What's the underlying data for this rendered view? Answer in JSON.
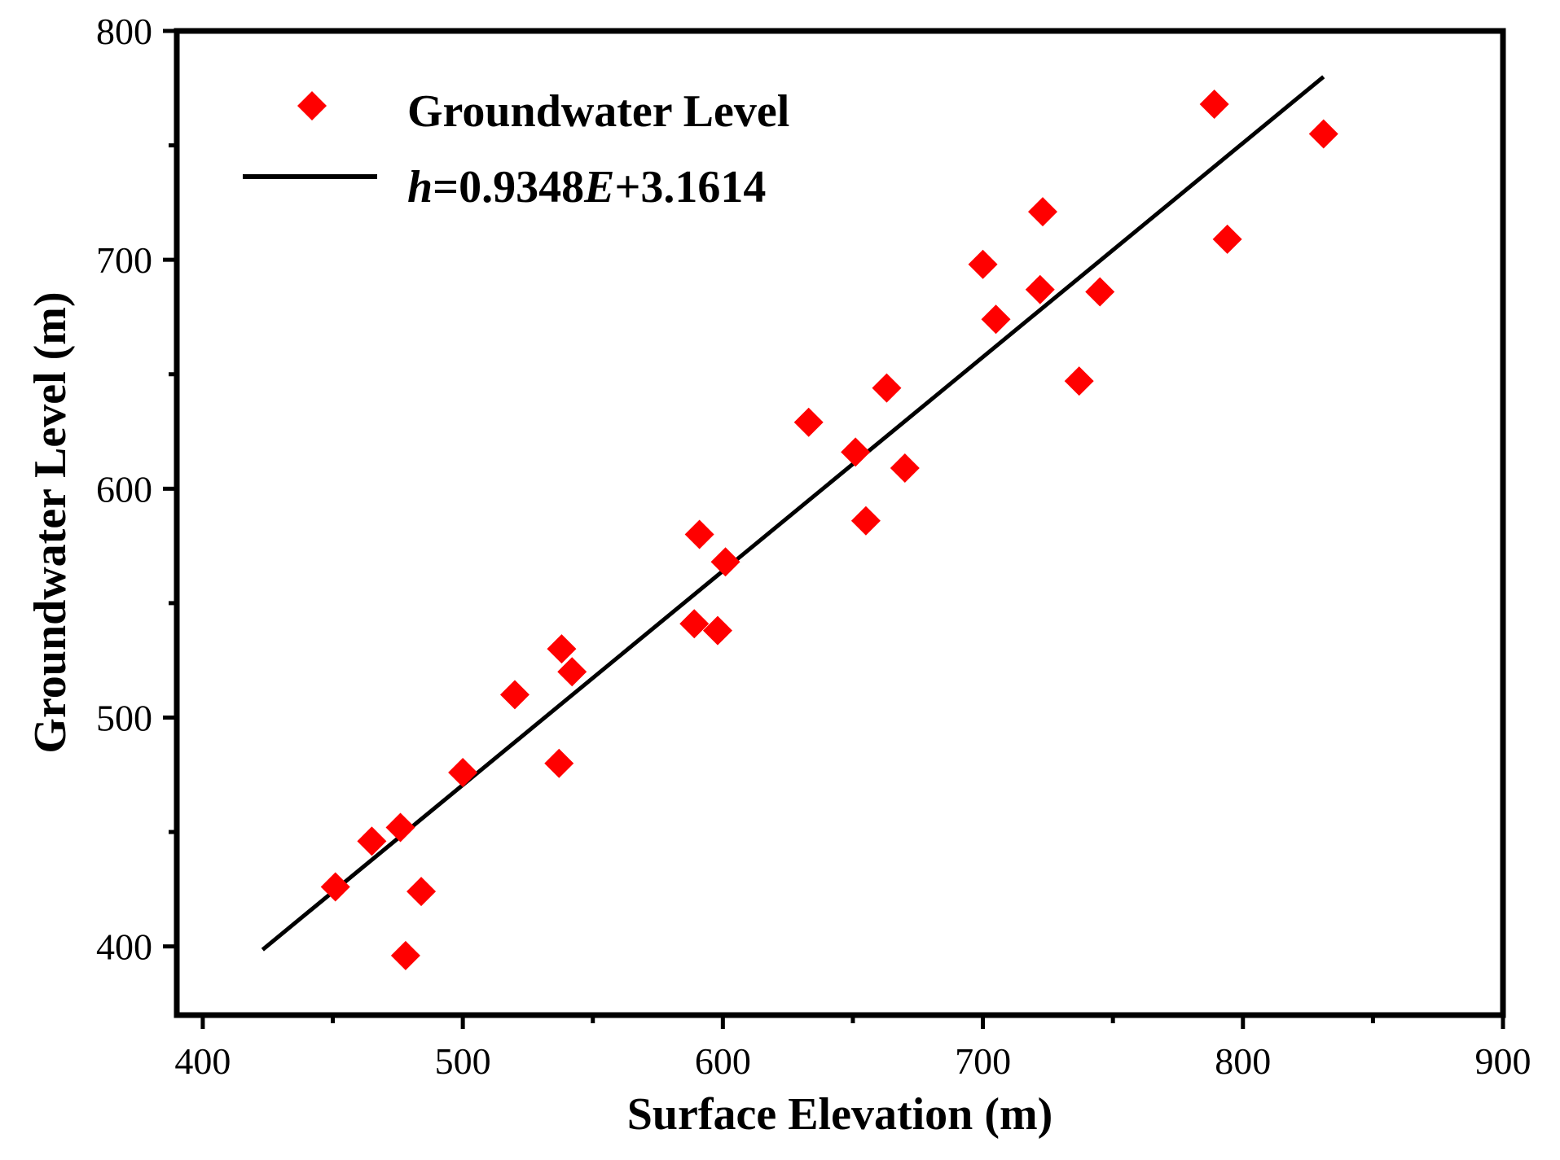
{
  "chart_data": {
    "type": "scatter",
    "title": "",
    "xlabel": "Surface Elevation (m)",
    "ylabel": "Groundwater Level (m)",
    "xlim": [
      390,
      900
    ],
    "ylim": [
      370,
      800
    ],
    "xticks": [
      400,
      500,
      600,
      700,
      800,
      900
    ],
    "xticks_minor": [
      450,
      550,
      650,
      750,
      850
    ],
    "yticks": [
      400,
      500,
      600,
      700,
      800
    ],
    "yticks_minor": [
      450,
      550,
      650,
      750
    ],
    "grid": false,
    "legend_position": "top-left",
    "series": [
      {
        "name": "Groundwater Level",
        "kind": "scatter",
        "marker": "diamond",
        "color": "#ff0000",
        "points": [
          [
            451,
            426
          ],
          [
            465,
            446
          ],
          [
            476,
            452
          ],
          [
            478,
            396
          ],
          [
            484,
            424
          ],
          [
            500,
            476
          ],
          [
            520,
            510
          ],
          [
            537,
            480
          ],
          [
            538,
            530
          ],
          [
            542,
            520
          ],
          [
            589,
            541
          ],
          [
            591,
            580
          ],
          [
            598,
            538
          ],
          [
            601,
            568
          ],
          [
            633,
            629
          ],
          [
            651,
            616
          ],
          [
            655,
            586
          ],
          [
            663,
            644
          ],
          [
            670,
            609
          ],
          [
            700,
            698
          ],
          [
            705,
            674
          ],
          [
            722,
            687
          ],
          [
            723,
            721
          ],
          [
            737,
            647
          ],
          [
            745,
            686
          ],
          [
            789,
            768
          ],
          [
            794,
            709
          ],
          [
            831,
            755
          ]
        ]
      },
      {
        "name": "fit",
        "kind": "line",
        "color": "#000000",
        "slope": 0.9348,
        "intercept": 3.1614,
        "x_range": [
          423,
          831
        ]
      }
    ],
    "legend": {
      "scatter_label": "Groundwater Level",
      "fit_label": {
        "h": "h",
        "eq1": "=0.9348",
        "E": "E",
        "eq2": "+3.1614"
      }
    }
  }
}
